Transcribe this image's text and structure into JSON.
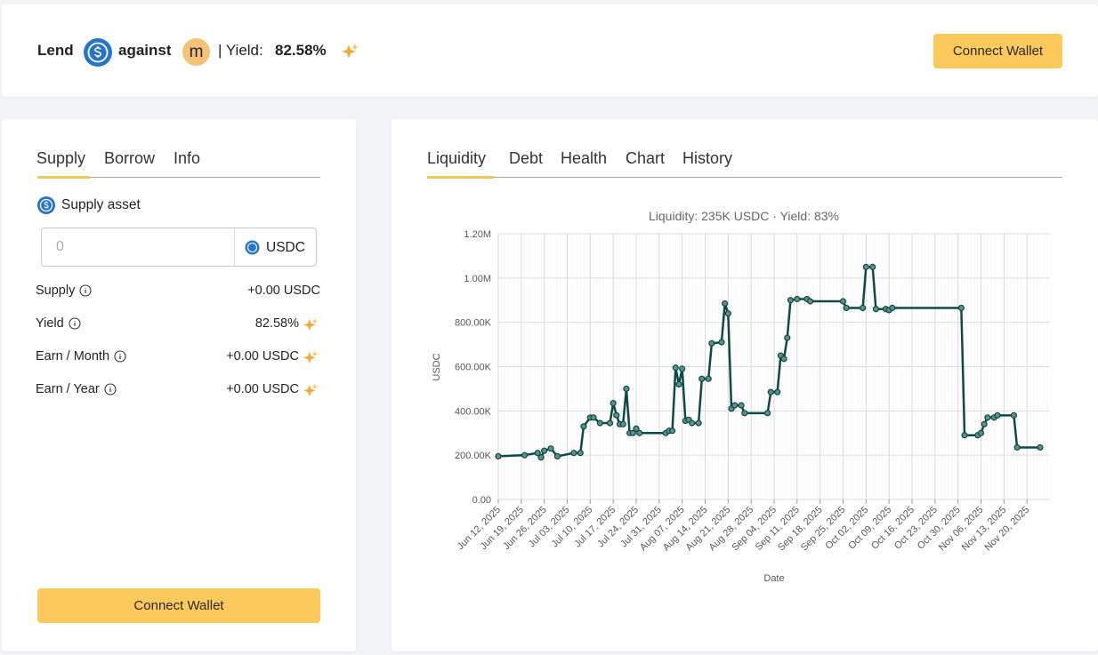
{
  "header": {
    "lend": "Lend",
    "against": "against",
    "collateral_symbol": "m",
    "yield_label": "| Yield:",
    "yield_value": "82.58%",
    "button": "Connect Wallet"
  },
  "left_panel": {
    "tabs": [
      "Supply",
      "Borrow",
      "Info"
    ],
    "asset_label": "Supply asset",
    "input_placeholder": "0",
    "asset": "USDC",
    "rows": [
      [
        "Supply",
        "+0.00 USDC"
      ],
      [
        "Yield",
        "82.58%"
      ],
      [
        "Earn / Month",
        "+0.00 USDC"
      ],
      [
        "Earn / Year",
        "+0.00 USDC"
      ]
    ],
    "button": "Connect Wallet"
  },
  "right_panel": {
    "tabs": [
      "Liquidity",
      "Debt",
      "Health",
      "Chart",
      "History"
    ]
  },
  "chart_data": {
    "type": "line",
    "title": "Liquidity: 235K USDC · Yield: 83%",
    "x_label": "Date",
    "y_label": "USDC",
    "x": [
      "2025-06-12",
      "2025-06-20",
      "2025-06-24",
      "2025-06-25",
      "2025-06-26",
      "2025-06-28",
      "2025-06-30",
      "2025-07-05",
      "2025-07-07",
      "2025-07-08",
      "2025-07-10",
      "2025-07-11",
      "2025-07-13",
      "2025-07-16",
      "2025-07-17",
      "2025-07-18",
      "2025-07-19",
      "2025-07-20",
      "2025-07-21",
      "2025-07-22",
      "2025-07-23",
      "2025-07-24",
      "2025-07-25",
      "2025-08-02",
      "2025-08-03",
      "2025-08-04",
      "2025-08-05",
      "2025-08-06",
      "2025-08-07",
      "2025-08-08",
      "2025-08-09",
      "2025-08-10",
      "2025-08-12",
      "2025-08-13",
      "2025-08-15",
      "2025-08-16",
      "2025-08-19",
      "2025-08-20",
      "2025-08-21",
      "2025-08-22",
      "2025-08-23",
      "2025-08-25",
      "2025-08-26",
      "2025-09-02",
      "2025-09-03",
      "2025-09-05",
      "2025-09-06",
      "2025-09-07",
      "2025-09-08",
      "2025-09-09",
      "2025-09-11",
      "2025-09-14",
      "2025-09-15",
      "2025-09-25",
      "2025-09-26",
      "2025-10-01",
      "2025-10-02",
      "2025-10-04",
      "2025-10-05",
      "2025-10-08",
      "2025-10-09",
      "2025-10-10",
      "2025-10-31",
      "2025-11-01",
      "2025-11-05",
      "2025-11-06",
      "2025-11-07",
      "2025-11-08",
      "2025-11-10",
      "2025-11-11",
      "2025-11-16",
      "2025-11-17",
      "2025-11-24"
    ],
    "series": [
      {
        "name": "Liquidity",
        "color": "#0d4a45",
        "values": [
          195000,
          200000,
          210000,
          190000,
          220000,
          230000,
          195000,
          210000,
          210000,
          330000,
          370000,
          370000,
          345000,
          345000,
          435000,
          380000,
          340000,
          340000,
          500000,
          300000,
          300000,
          320000,
          300000,
          300000,
          310000,
          310000,
          595000,
          520000,
          590000,
          355000,
          360000,
          345000,
          345000,
          545000,
          545000,
          705000,
          710000,
          885000,
          840000,
          410000,
          425000,
          425000,
          390000,
          390000,
          485000,
          485000,
          650000,
          635000,
          730000,
          900000,
          905000,
          905000,
          895000,
          895000,
          865000,
          865000,
          1050000,
          1050000,
          860000,
          860000,
          855000,
          865000,
          865000,
          290000,
          290000,
          300000,
          340000,
          370000,
          370000,
          380000,
          380000,
          235000,
          235000
        ]
      }
    ],
    "xlim": [
      "2025-06-12",
      "2025-11-27"
    ],
    "xticks": [
      {
        "value": "2025-06-12",
        "label": "Jun 12, 2025"
      },
      {
        "value": "2025-06-19",
        "label": "Jun 19, 2025"
      },
      {
        "value": "2025-06-26",
        "label": "Jun 26, 2025"
      },
      {
        "value": "2025-07-03",
        "label": "Jul 03, 2025"
      },
      {
        "value": "2025-07-10",
        "label": "Jul 10, 2025"
      },
      {
        "value": "2025-07-17",
        "label": "Jul 17, 2025"
      },
      {
        "value": "2025-07-24",
        "label": "Jul 24, 2025"
      },
      {
        "value": "2025-07-31",
        "label": "Jul 31, 2025"
      },
      {
        "value": "2025-08-07",
        "label": "Aug 07, 2025"
      },
      {
        "value": "2025-08-14",
        "label": "Aug 14, 2025"
      },
      {
        "value": "2025-08-21",
        "label": "Aug 21, 2025"
      },
      {
        "value": "2025-08-28",
        "label": "Aug 28, 2025"
      },
      {
        "value": "2025-09-04",
        "label": "Sep 04, 2025"
      },
      {
        "value": "2025-09-11",
        "label": "Sep 11, 2025"
      },
      {
        "value": "2025-09-18",
        "label": "Sep 18, 2025"
      },
      {
        "value": "2025-09-25",
        "label": "Sep 25, 2025"
      },
      {
        "value": "2025-10-02",
        "label": "Oct 02, 2025"
      },
      {
        "value": "2025-10-09",
        "label": "Oct 09, 2025"
      },
      {
        "value": "2025-10-16",
        "label": "Oct 16, 2025"
      },
      {
        "value": "2025-10-23",
        "label": "Oct 23, 2025"
      },
      {
        "value": "2025-10-30",
        "label": "Oct 30, 2025"
      },
      {
        "value": "2025-11-06",
        "label": "Nov 06, 2025"
      },
      {
        "value": "2025-11-13",
        "label": "Nov 13, 2025"
      },
      {
        "value": "2025-11-20",
        "label": "Nov 20, 2025"
      }
    ],
    "ylim": [
      0,
      1200000
    ],
    "yticks": [
      {
        "value": 0,
        "label": "0.00"
      },
      {
        "value": 200000,
        "label": "200.00K"
      },
      {
        "value": 400000,
        "label": "400.00K"
      },
      {
        "value": 600000,
        "label": "600.00K"
      },
      {
        "value": 800000,
        "label": "800.00K"
      },
      {
        "value": 1000000,
        "label": "1.00M"
      },
      {
        "value": 1200000,
        "label": "1.20M"
      }
    ],
    "grid": true
  }
}
